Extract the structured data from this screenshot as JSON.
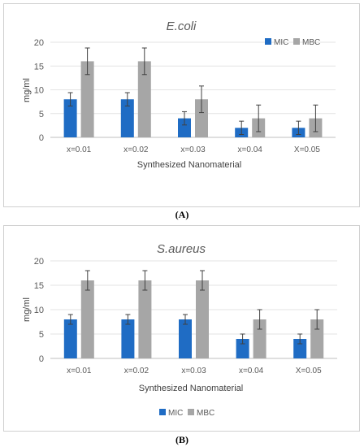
{
  "chart_data": [
    {
      "type": "bar",
      "title": "E.coli",
      "xlabel": "Synthesized Nanomaterial",
      "ylabel": "mg/ml",
      "ylim": [
        0,
        20
      ],
      "yticks": [
        0,
        5,
        10,
        15,
        20
      ],
      "grid": true,
      "legend_position": "top-right",
      "categories": [
        "x=0.01",
        "x=0.02",
        "x=0.03",
        "x=0.04",
        "X=0.05"
      ],
      "series": [
        {
          "name": "MIC",
          "color": "#1f6cc4",
          "values": [
            8,
            8,
            4,
            2,
            2
          ],
          "errors": [
            1.4,
            1.4,
            1.4,
            1.4,
            1.4
          ]
        },
        {
          "name": "MBC",
          "color": "#a6a6a6",
          "values": [
            16,
            16,
            8,
            4,
            4
          ],
          "errors": [
            2.8,
            2.8,
            2.8,
            2.8,
            2.8
          ]
        }
      ],
      "caption": "(A)"
    },
    {
      "type": "bar",
      "title": "S.aureus",
      "xlabel": "Synthesized Nanomaterial",
      "ylabel": "mg/ml",
      "ylim": [
        0,
        20
      ],
      "yticks": [
        0,
        5,
        10,
        15,
        20
      ],
      "grid": true,
      "legend_position": "bottom",
      "categories": [
        "x=0.01",
        "x=0.02",
        "x=0.03",
        "x=0.04",
        "X=0.05"
      ],
      "series": [
        {
          "name": "MIC",
          "color": "#1f6cc4",
          "values": [
            8,
            8,
            8,
            4,
            4
          ],
          "errors": [
            1,
            1,
            1,
            1,
            1
          ]
        },
        {
          "name": "MBC",
          "color": "#a6a6a6",
          "values": [
            16,
            16,
            16,
            8,
            8
          ],
          "errors": [
            2,
            2,
            2,
            2,
            2
          ]
        }
      ],
      "caption": "(B)"
    }
  ]
}
